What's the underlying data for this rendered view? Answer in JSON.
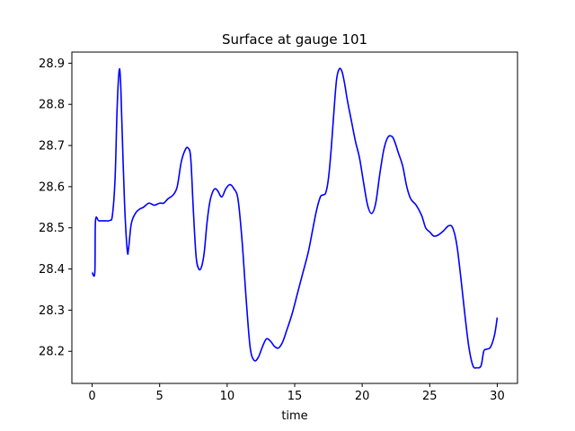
{
  "chart_data": {
    "type": "line",
    "title": "Surface at gauge 101",
    "xlabel": "time",
    "ylabel": "",
    "xlim": [
      -1.5,
      31.5
    ],
    "ylim": [
      28.122,
      28.927
    ],
    "xticks": [
      0,
      5,
      10,
      15,
      20,
      25,
      30
    ],
    "xtick_labels": [
      "0",
      "5",
      "10",
      "15",
      "20",
      "25",
      "30"
    ],
    "yticks": [
      28.2,
      28.3,
      28.4,
      28.5,
      28.6,
      28.7,
      28.8,
      28.9
    ],
    "ytick_labels": [
      "28.2",
      "28.3",
      "28.4",
      "28.5",
      "28.6",
      "28.7",
      "28.8",
      "28.9"
    ],
    "grid": false,
    "series": [
      {
        "color": "#0000ff",
        "x": [
          0,
          0.2,
          0.25,
          0.5,
          1.0,
          1.3,
          1.5,
          1.7,
          1.85,
          2.0,
          2.1,
          2.2,
          2.4,
          2.6,
          2.7,
          2.9,
          3.2,
          3.5,
          3.8,
          4.2,
          4.6,
          5.0,
          5.3,
          5.6,
          6.0,
          6.3,
          6.6,
          6.9,
          7.1,
          7.3,
          7.5,
          7.7,
          7.9,
          8.1,
          8.3,
          8.5,
          8.7,
          8.9,
          9.1,
          9.3,
          9.6,
          9.9,
          10.2,
          10.5,
          10.8,
          11.1,
          11.4,
          11.7,
          12.0,
          12.3,
          12.6,
          12.9,
          13.2,
          13.5,
          13.8,
          14.1,
          14.4,
          14.8,
          15.2,
          15.6,
          16.0,
          16.3,
          16.6,
          16.9,
          17.1,
          17.3,
          17.5,
          17.7,
          17.9,
          18.1,
          18.3,
          18.5,
          18.7,
          18.9,
          19.2,
          19.5,
          19.8,
          20.1,
          20.4,
          20.7,
          21.0,
          21.3,
          21.6,
          21.9,
          22.2,
          22.4,
          22.7,
          23.0,
          23.3,
          23.6,
          24.0,
          24.4,
          24.7,
          25.0,
          25.3,
          25.6,
          26.0,
          26.4,
          26.7,
          27.0,
          27.3,
          27.6,
          27.9,
          28.2,
          28.5,
          28.8,
          29.0,
          29.2,
          29.5,
          29.8,
          30.0
        ],
        "y": [
          28.392,
          28.392,
          28.517,
          28.517,
          28.517,
          28.518,
          28.53,
          28.62,
          28.79,
          28.882,
          28.86,
          28.76,
          28.56,
          28.445,
          28.45,
          28.51,
          28.535,
          28.545,
          28.55,
          28.56,
          28.555,
          28.56,
          28.56,
          28.57,
          28.58,
          28.6,
          28.66,
          28.69,
          28.694,
          28.67,
          28.54,
          28.43,
          28.4,
          28.405,
          28.44,
          28.51,
          28.56,
          28.585,
          28.595,
          28.59,
          28.575,
          28.595,
          28.605,
          28.595,
          28.57,
          28.47,
          28.33,
          28.21,
          28.178,
          28.185,
          28.21,
          28.23,
          28.225,
          28.212,
          28.208,
          28.222,
          28.25,
          28.29,
          28.34,
          28.39,
          28.44,
          28.49,
          28.54,
          28.575,
          28.58,
          28.585,
          28.62,
          28.69,
          28.78,
          28.86,
          28.886,
          28.88,
          28.85,
          28.81,
          28.76,
          28.71,
          28.67,
          28.61,
          28.555,
          28.535,
          28.56,
          28.63,
          28.69,
          28.72,
          28.722,
          28.71,
          28.68,
          28.65,
          28.6,
          28.57,
          28.555,
          28.53,
          28.5,
          28.49,
          28.48,
          28.482,
          28.492,
          28.505,
          28.5,
          28.46,
          28.38,
          28.29,
          28.21,
          28.165,
          28.16,
          28.165,
          28.2,
          28.205,
          28.21,
          28.24,
          28.282
        ]
      }
    ]
  }
}
